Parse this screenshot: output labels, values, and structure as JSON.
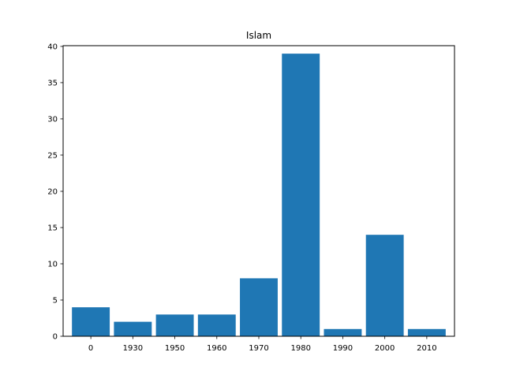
{
  "chart_data": {
    "type": "bar",
    "title": "Islam",
    "xlabel": "",
    "ylabel": "",
    "categories": [
      "0",
      "1930",
      "1950",
      "1960",
      "1970",
      "1980",
      "1990",
      "2000",
      "2010"
    ],
    "values": [
      4,
      2,
      3,
      3,
      8,
      39,
      1,
      14,
      1
    ],
    "ylim": [
      0,
      40.1
    ],
    "yticks": [
      0,
      5,
      10,
      15,
      20,
      25,
      30,
      35,
      40
    ],
    "bar_color": "#1f77b4",
    "grid": false,
    "legend": false
  }
}
